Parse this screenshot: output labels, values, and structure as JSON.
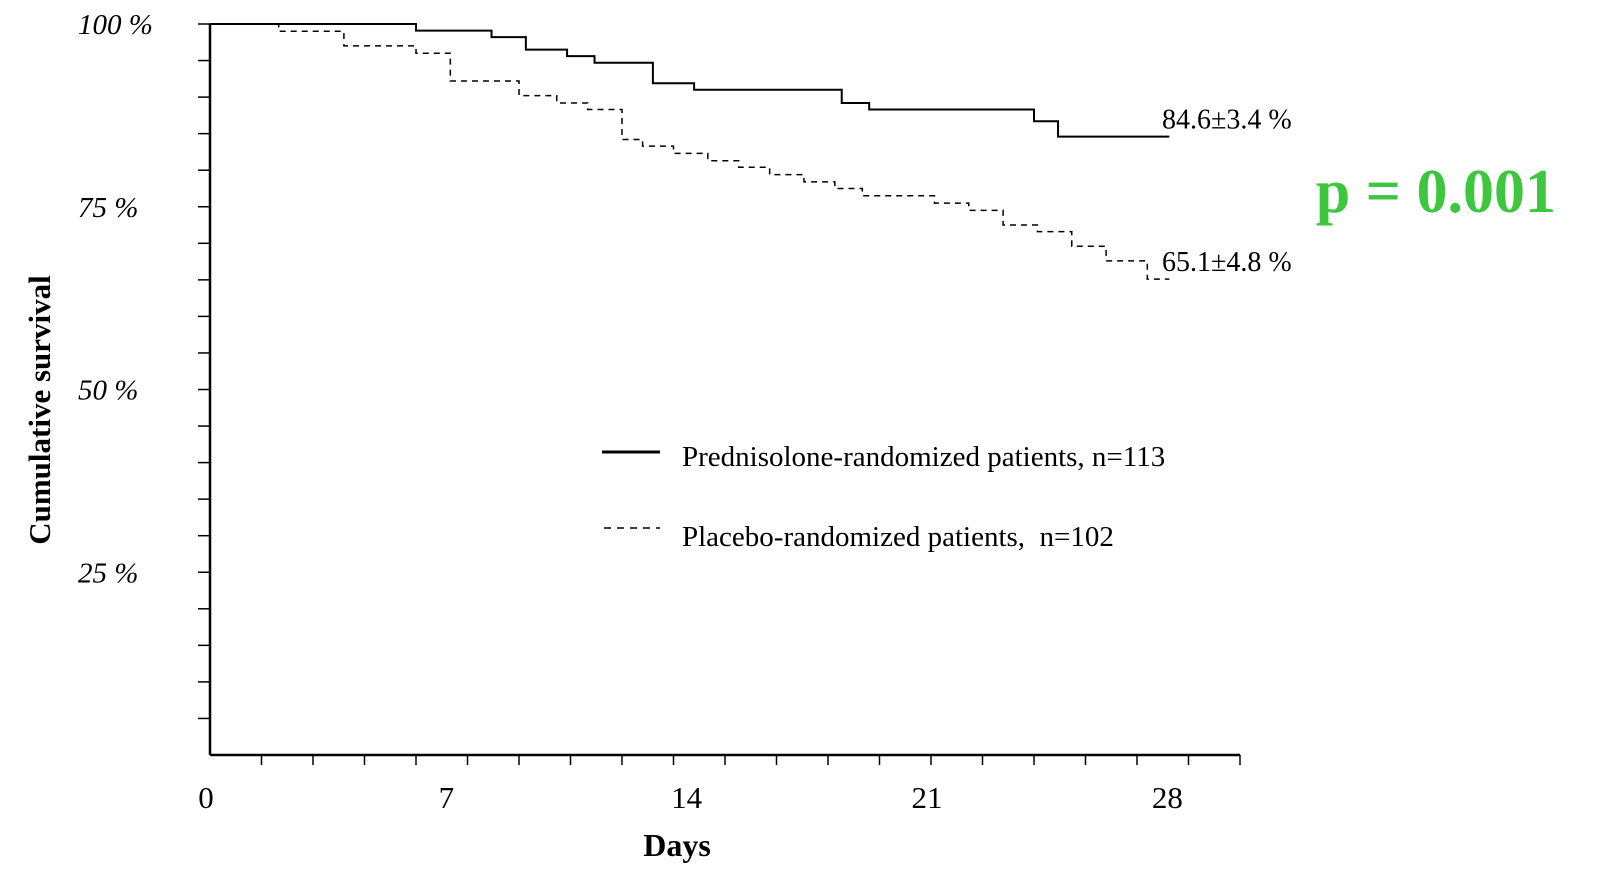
{
  "chart_data": {
    "type": "line",
    "title": "",
    "xlabel": "Days",
    "ylabel": "Cumulative survival",
    "xlim": [
      0,
      30
    ],
    "ylim": [
      0,
      100
    ],
    "x_ticks": [
      0,
      7,
      14,
      21,
      28
    ],
    "x_tick_labels": [
      "0",
      "7",
      "14",
      "21",
      "28"
    ],
    "y_ticks": [
      25,
      50,
      75,
      100
    ],
    "y_tick_labels": [
      "25 %",
      "50 %",
      "75 %",
      "100 %"
    ],
    "x_minor_step": 1.5,
    "y_minor_step": 5,
    "grid": false,
    "legend_position": "center-right",
    "series": [
      {
        "name": "Prednisolone-randomized patients, n=113",
        "line_style": "solid",
        "step": true,
        "x": [
          0,
          6.0,
          8.2,
          9.2,
          10.4,
          11.2,
          12.9,
          14.1,
          18.4,
          19.2,
          24.0,
          24.7,
          27.3
        ],
        "y": [
          100,
          99.1,
          98.2,
          96.5,
          95.6,
          94.7,
          91.9,
          91.0,
          89.2,
          88.3,
          86.7,
          84.6,
          84.6
        ],
        "end_label": "84.6±3.4 %"
      },
      {
        "name": "Placebo-randomized patients,  n=102",
        "line_style": "dashed",
        "step": true,
        "x": [
          0,
          2.0,
          3.9,
          6.0,
          7.0,
          9.0,
          10.1,
          11.0,
          12.0,
          12.6,
          13.5,
          14.5,
          15.4,
          16.3,
          17.3,
          18.2,
          19.0,
          21.1,
          22.1,
          23.1,
          24.1,
          25.1,
          26.1,
          27.3
        ],
        "y": [
          100,
          99.0,
          97.0,
          96.0,
          92.2,
          90.2,
          89.2,
          88.3,
          84.2,
          83.3,
          82.3,
          81.3,
          80.4,
          79.4,
          78.4,
          77.5,
          76.5,
          75.5,
          74.5,
          72.5,
          71.6,
          69.6,
          67.6,
          65.1
        ],
        "end_label": "65.1±4.8 %"
      }
    ],
    "annotations": [
      {
        "text": "p = 0.001",
        "color": "#3ec63e"
      }
    ]
  }
}
